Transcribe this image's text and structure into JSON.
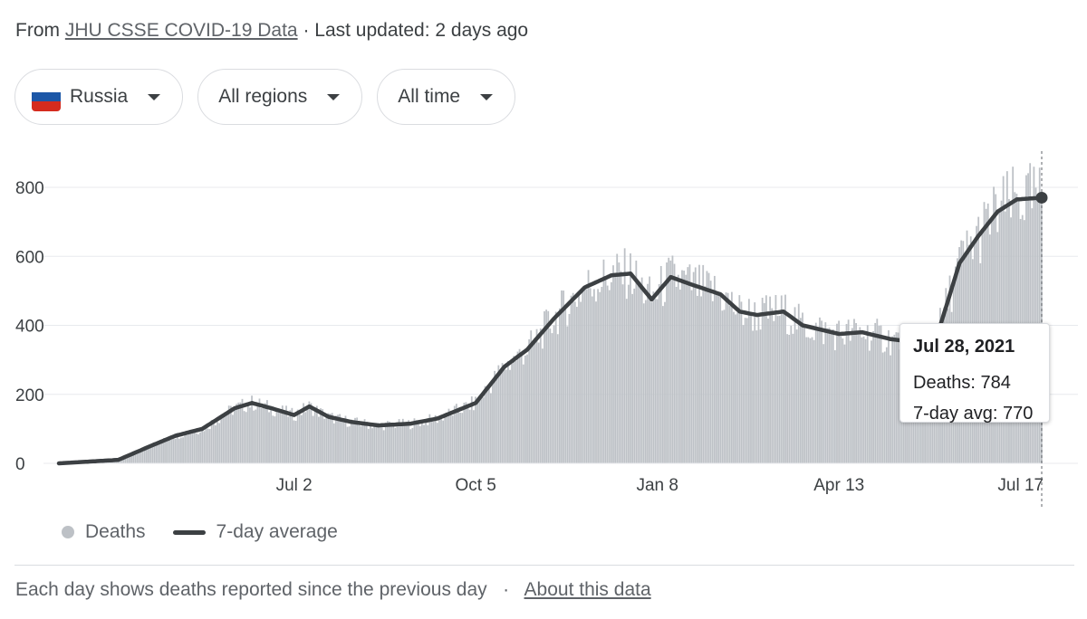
{
  "header": {
    "prefix": "From",
    "source_link": "JHU CSSE COVID-19 Data",
    "updated": "· Last updated: 2 days ago"
  },
  "filters": {
    "country": "Russia",
    "region": "All regions",
    "time": "All time",
    "flag_colors": [
      "#ffffff",
      "#1c57a7",
      "#d52b1e"
    ]
  },
  "tooltip": {
    "date": "Jul 28, 2021",
    "deaths": "Deaths: 784",
    "avg": "7-day avg: 770"
  },
  "legend": {
    "deaths": "Deaths",
    "avg": "7-day average"
  },
  "footer": {
    "note": "Each day shows deaths reported since the previous day",
    "sep": "·",
    "about_link": "About this data"
  },
  "colors": {
    "bars": "#bdc1c6",
    "avg_line": "#3c4043",
    "grid": "#e8eaed"
  },
  "chart_data": {
    "type": "bar",
    "title": "",
    "xlabel": "",
    "ylabel": "",
    "ylim": [
      0,
      800
    ],
    "yticks": [
      "0",
      "200",
      "400",
      "600",
      "800"
    ],
    "xticks": [
      "Jul 2",
      "Oct 5",
      "Jan 8",
      "Apr 13",
      "Jul 17"
    ],
    "xlim": [
      "2020-03-01",
      "2021-07-28"
    ],
    "grid": true,
    "series": [
      {
        "name": "Deaths",
        "type": "bar"
      },
      {
        "name": "7-day average",
        "type": "line",
        "x": [
          "2020-03-01",
          "2020-04-01",
          "2020-04-20",
          "2020-05-01",
          "2020-05-15",
          "2020-06-01",
          "2020-06-10",
          "2020-06-20",
          "2020-07-02",
          "2020-07-10",
          "2020-07-20",
          "2020-08-01",
          "2020-08-15",
          "2020-09-01",
          "2020-09-15",
          "2020-10-05",
          "2020-10-20",
          "2020-11-01",
          "2020-11-15",
          "2020-12-01",
          "2020-12-15",
          "2020-12-25",
          "2021-01-05",
          "2021-01-15",
          "2021-01-25",
          "2021-02-10",
          "2021-02-20",
          "2021-03-01",
          "2021-03-15",
          "2021-03-25",
          "2021-04-13",
          "2021-04-25",
          "2021-05-10",
          "2021-05-25",
          "2021-06-05",
          "2021-06-15",
          "2021-06-25",
          "2021-07-05",
          "2021-07-15",
          "2021-07-28"
        ],
        "values": [
          0,
          10,
          55,
          80,
          100,
          160,
          175,
          160,
          140,
          165,
          135,
          120,
          110,
          115,
          130,
          175,
          280,
          330,
          420,
          510,
          545,
          550,
          475,
          540,
          520,
          490,
          440,
          430,
          440,
          400,
          375,
          380,
          360,
          350,
          400,
          580,
          660,
          730,
          765,
          770
        ]
      }
    ],
    "annotation": {
      "date": "2021-07-28",
      "deaths": 784,
      "avg": 770
    }
  }
}
